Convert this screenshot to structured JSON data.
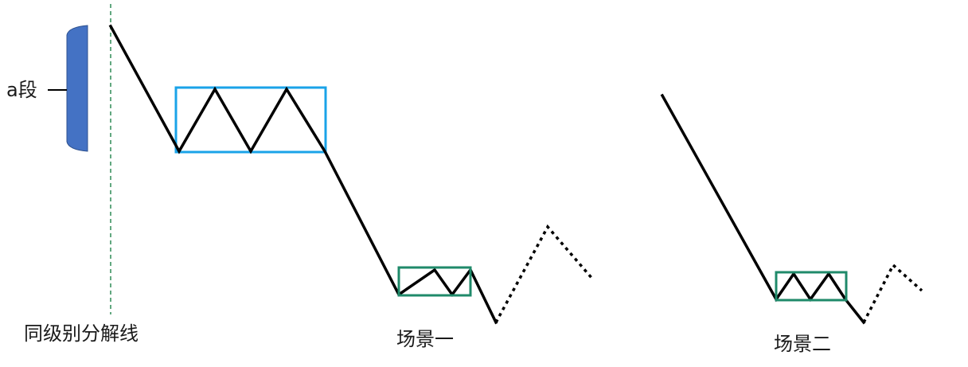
{
  "labels": {
    "segment_a": "a段",
    "split_line": "同级别分解线",
    "scene_one": "场景一",
    "scene_two": "场景二"
  },
  "colors": {
    "segment_bar": "#4472c4",
    "split_line": "#2e8b57",
    "large_box": "#1aa3e8",
    "small_box": "#1f8a6a",
    "price_line": "#000000"
  }
}
